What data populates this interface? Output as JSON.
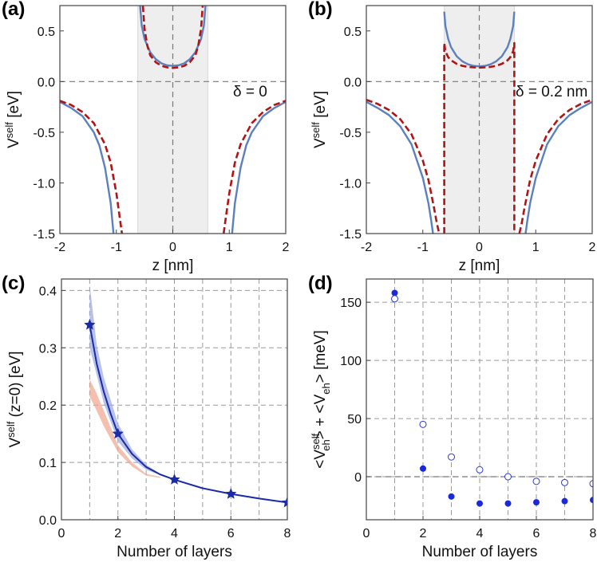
{
  "panels": {
    "a": {
      "label": "(a)"
    },
    "b": {
      "label": "(b)"
    },
    "c": {
      "label": "(c)"
    },
    "d": {
      "label": "(d)"
    }
  },
  "chart_data": [
    {
      "id": "a",
      "type": "line",
      "xlabel": "z [nm]",
      "ylabel": {
        "base": "V",
        "sup": "self",
        "rest": "  [eV]"
      },
      "xlim": [
        -2,
        2
      ],
      "ylim": [
        -1.5,
        0.75
      ],
      "xticks": [
        -2,
        -1,
        0,
        1,
        2
      ],
      "yticks": [
        -1.5,
        -1.0,
        -0.5,
        0.0,
        0.5
      ],
      "ytick_labels": [
        "-1.5",
        "-1.0",
        "-0.5",
        "0.0",
        "0.5"
      ],
      "annotation": "δ = 0",
      "shaded_region": [
        -0.62,
        0.62
      ],
      "reference_lines": {
        "y": 0,
        "x": 0
      },
      "series": [
        {
          "style": "solid",
          "color": "#5b80bd",
          "segments": [
            {
              "x": [
                -2.0,
                -1.8,
                -1.6,
                -1.4,
                -1.3,
                -1.2,
                -1.1,
                -1.05
              ],
              "y": [
                -0.2,
                -0.26,
                -0.34,
                -0.5,
                -0.63,
                -0.85,
                -1.2,
                -1.5
              ]
            },
            {
              "x": [
                -0.58,
                -0.55,
                -0.5,
                -0.4,
                -0.3,
                -0.2,
                -0.1,
                0.0,
                0.1,
                0.2,
                0.3,
                0.4,
                0.5,
                0.55,
                0.58
              ],
              "y": [
                0.75,
                0.55,
                0.42,
                0.29,
                0.22,
                0.18,
                0.16,
                0.155,
                0.16,
                0.18,
                0.22,
                0.29,
                0.42,
                0.55,
                0.75
              ]
            },
            {
              "x": [
                1.05,
                1.1,
                1.2,
                1.3,
                1.4,
                1.6,
                1.8,
                2.0
              ],
              "y": [
                -1.5,
                -1.2,
                -0.85,
                -0.63,
                -0.5,
                -0.34,
                -0.26,
                -0.2
              ]
            }
          ]
        },
        {
          "style": "dashed",
          "color": "#b01515",
          "segments": [
            {
              "x": [
                -2.0,
                -1.8,
                -1.6,
                -1.4,
                -1.2,
                -1.1,
                -1.0,
                -0.95,
                -0.9
              ],
              "y": [
                -0.19,
                -0.23,
                -0.3,
                -0.41,
                -0.62,
                -0.8,
                -1.1,
                -1.3,
                -1.5
              ]
            },
            {
              "x": [
                -0.53,
                -0.5,
                -0.45,
                -0.4,
                -0.3,
                -0.2,
                -0.1,
                0.0,
                0.1,
                0.2,
                0.3,
                0.4,
                0.45,
                0.5,
                0.53
              ],
              "y": [
                0.75,
                0.52,
                0.35,
                0.26,
                0.19,
                0.155,
                0.14,
                0.135,
                0.14,
                0.155,
                0.19,
                0.26,
                0.35,
                0.52,
                0.75
              ]
            },
            {
              "x": [
                0.9,
                0.95,
                1.0,
                1.1,
                1.2,
                1.4,
                1.6,
                1.8,
                2.0
              ],
              "y": [
                -1.5,
                -1.3,
                -1.1,
                -0.8,
                -0.62,
                -0.41,
                -0.3,
                -0.23,
                -0.19
              ]
            }
          ]
        }
      ]
    },
    {
      "id": "b",
      "type": "line",
      "xlabel": "z [nm]",
      "ylabel": {
        "base": "V",
        "sup": "self",
        "rest": "  [eV]"
      },
      "xlim": [
        -2,
        2
      ],
      "ylim": [
        -1.5,
        0.75
      ],
      "xticks": [
        -2,
        -1,
        0,
        1,
        2
      ],
      "yticks": [
        -1.5,
        -1.0,
        -0.5,
        0.0,
        0.5
      ],
      "ytick_labels": [
        "-1.5",
        "-1.0",
        "-0.5",
        "0.0",
        "0.5"
      ],
      "annotation": "δ = 0.2 nm",
      "shaded_region": [
        -0.62,
        0.62
      ],
      "reference_lines": {
        "y": 0,
        "x": 0
      },
      "series": [
        {
          "style": "solid",
          "color": "#5b80bd",
          "segments": [
            {
              "x": [
                -2.0,
                -1.8,
                -1.6,
                -1.4,
                -1.2,
                -1.0,
                -0.9,
                -0.85,
                -0.82
              ],
              "y": [
                -0.2,
                -0.26,
                -0.33,
                -0.44,
                -0.62,
                -0.95,
                -1.2,
                -1.38,
                -1.5
              ]
            },
            {
              "x": [
                -0.62,
                -0.6,
                -0.55,
                -0.5,
                -0.4,
                -0.3,
                -0.2,
                -0.1,
                0.0,
                0.1,
                0.2,
                0.3,
                0.4,
                0.5,
                0.55,
                0.6,
                0.62
              ],
              "y": [
                0.69,
                0.55,
                0.42,
                0.34,
                0.25,
                0.2,
                0.17,
                0.155,
                0.15,
                0.155,
                0.17,
                0.2,
                0.25,
                0.34,
                0.42,
                0.55,
                0.69
              ]
            },
            {
              "x": [
                0.82,
                0.85,
                0.9,
                1.0,
                1.2,
                1.4,
                1.6,
                1.8,
                2.0
              ],
              "y": [
                -1.5,
                -1.38,
                -1.2,
                -0.95,
                -0.62,
                -0.44,
                -0.33,
                -0.26,
                -0.2
              ]
            }
          ]
        },
        {
          "style": "dashed",
          "color": "#b01515",
          "segments": [
            {
              "x": [
                -2.0,
                -1.8,
                -1.6,
                -1.4,
                -1.2,
                -1.0,
                -0.9,
                -0.8,
                -0.75,
                -0.71
              ],
              "y": [
                -0.18,
                -0.22,
                -0.28,
                -0.37,
                -0.52,
                -0.78,
                -0.97,
                -1.25,
                -1.4,
                -1.5
              ]
            },
            {
              "x": [
                -0.62,
                -0.62,
                -0.6,
                -0.55,
                -0.5,
                -0.4,
                -0.3,
                -0.2,
                -0.1,
                0.0,
                0.1,
                0.2,
                0.3,
                0.4,
                0.5,
                0.55,
                0.6,
                0.62,
                0.62
              ],
              "y": [
                -1.5,
                0.38,
                0.3,
                0.24,
                0.21,
                0.175,
                0.155,
                0.145,
                0.14,
                0.138,
                0.14,
                0.145,
                0.155,
                0.175,
                0.21,
                0.24,
                0.3,
                0.38,
                -1.5
              ]
            },
            {
              "x": [
                0.71,
                0.75,
                0.8,
                0.9,
                1.0,
                1.2,
                1.4,
                1.6,
                1.8,
                2.0
              ],
              "y": [
                -1.5,
                -1.4,
                -1.25,
                -0.97,
                -0.78,
                -0.52,
                -0.37,
                -0.28,
                -0.22,
                -0.18
              ]
            }
          ]
        }
      ]
    },
    {
      "id": "c",
      "type": "line",
      "xlabel": "Number of layers",
      "ylabel": {
        "base": "V",
        "sup": "self",
        "rest": "  (z=0) [eV]"
      },
      "xlim": [
        0,
        8
      ],
      "ylim": [
        0,
        0.42
      ],
      "xticks": [
        0,
        2,
        4,
        6,
        8
      ],
      "yticks": [
        0.0,
        0.1,
        0.2,
        0.3,
        0.4
      ],
      "ytick_labels": [
        "0.0",
        "0.1",
        "0.2",
        "0.3",
        "0.4"
      ],
      "grid_x": [
        1,
        2,
        3,
        4,
        5,
        6,
        7,
        8
      ],
      "series": [
        {
          "style": "line_with_star_markers",
          "color": "#1a2aa8",
          "x": [
            1,
            2,
            4,
            6,
            8
          ],
          "y": [
            0.34,
            0.15,
            0.07,
            0.045,
            0.03
          ],
          "curve_x": [
            1,
            1.25,
            1.5,
            1.75,
            2,
            2.5,
            3,
            3.5,
            4,
            5,
            6,
            7,
            8
          ],
          "curve_y": [
            0.34,
            0.272,
            0.223,
            0.184,
            0.15,
            0.115,
            0.092,
            0.079,
            0.07,
            0.055,
            0.045,
            0.037,
            0.03
          ]
        },
        {
          "style": "band",
          "color": "#9aa8e0",
          "x": [
            1,
            1.25,
            1.5,
            2,
            2.5,
            3,
            3.5
          ],
          "upper": [
            0.41,
            0.305,
            0.248,
            0.168,
            0.123,
            0.096,
            0.08
          ],
          "lower": [
            0.3,
            0.252,
            0.203,
            0.137,
            0.107,
            0.087,
            0.078
          ]
        },
        {
          "style": "band",
          "color": "#f0a48c",
          "x": [
            1,
            1.25,
            1.5,
            2,
            2.5,
            3,
            3.5
          ],
          "upper": [
            0.245,
            0.22,
            0.19,
            0.13,
            0.1,
            0.08,
            0.075
          ],
          "lower": [
            0.215,
            0.19,
            0.163,
            0.118,
            0.093,
            0.077,
            0.073
          ]
        }
      ]
    },
    {
      "id": "d",
      "type": "scatter",
      "xlabel": "Number of layers",
      "ylabel": {
        "p1": "<V",
        "p1sup": "self",
        "p1sub": "eh",
        "p2": "> + <V",
        "p2sub": "eh",
        "p3": ">  [meV]"
      },
      "xlim": [
        0,
        8
      ],
      "ylim": [
        -37,
        170
      ],
      "xticks": [
        0,
        2,
        4,
        6,
        8
      ],
      "yticks": [
        0,
        50,
        100,
        150
      ],
      "ytick_labels": [
        "0",
        "50",
        "100",
        "150"
      ],
      "grid_x": [
        1,
        2,
        3,
        4,
        5,
        6,
        7,
        8
      ],
      "reference_lines": {
        "y": 0
      },
      "series": [
        {
          "marker": "filled",
          "color": "#1a2ad8",
          "x": [
            1,
            2,
            3,
            4,
            5,
            6,
            7,
            8
          ],
          "y": [
            158,
            7,
            -17,
            -23,
            -23,
            -22,
            -21,
            -20
          ]
        },
        {
          "marker": "open",
          "color": "#2a3ad0",
          "x": [
            1,
            2,
            3,
            4,
            5,
            6,
            7,
            8
          ],
          "y": [
            153,
            45,
            17,
            6,
            0,
            -4,
            -5,
            -6
          ]
        }
      ]
    }
  ]
}
